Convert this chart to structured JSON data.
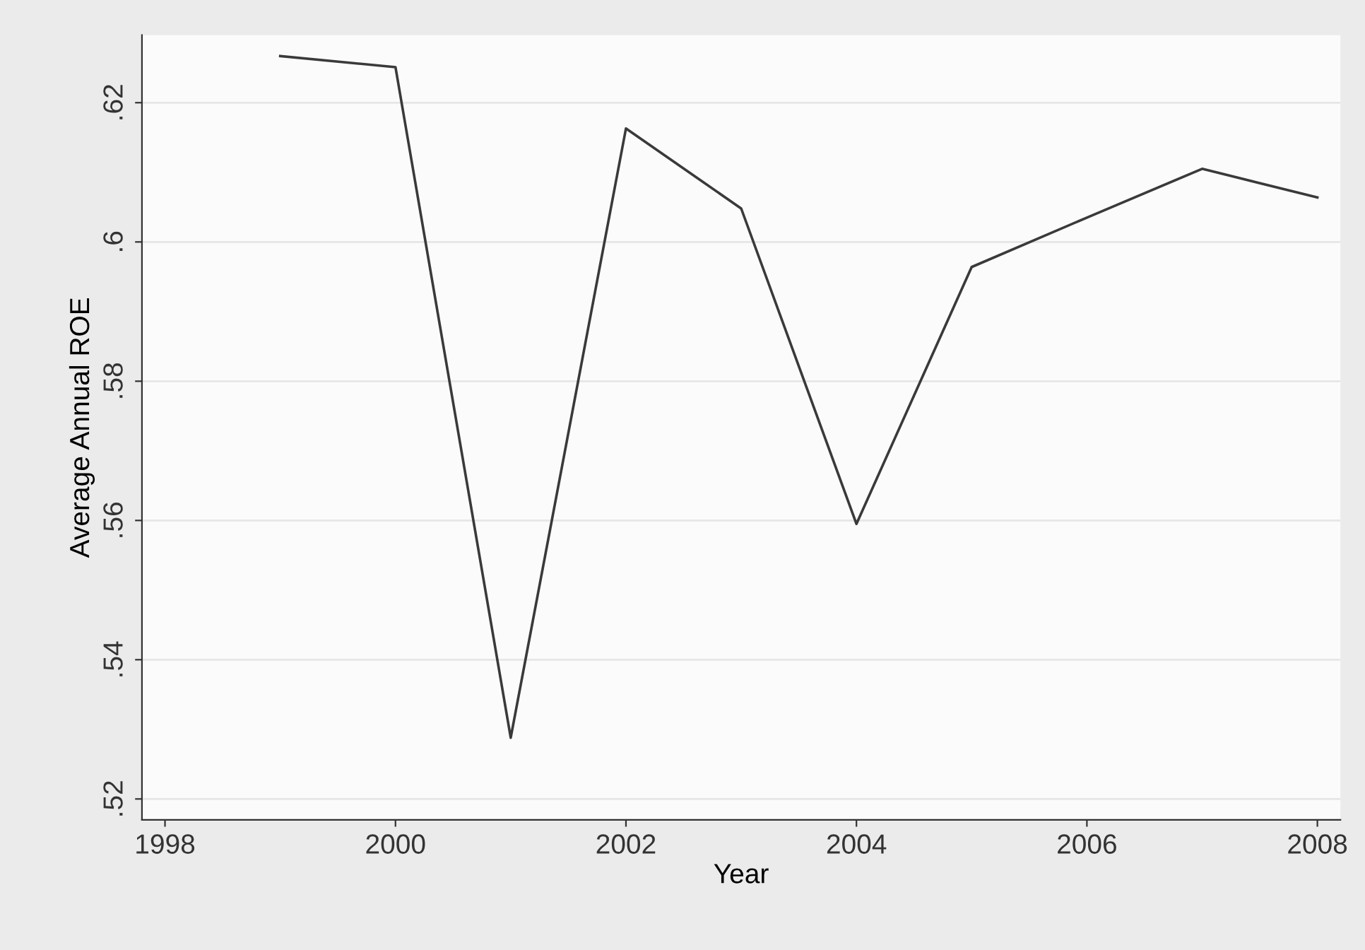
{
  "chart_data": {
    "type": "line",
    "xlabel": "Year",
    "ylabel": "Average Annual ROE",
    "x": [
      1999,
      2000,
      2001,
      2002,
      2003,
      2004,
      2005,
      2006,
      2007,
      2008
    ],
    "series": [
      {
        "color": "#3a3a3a",
        "values": [
          0.6267,
          0.6251,
          0.5288,
          0.6163,
          0.6048,
          0.5595,
          0.5964,
          0.6035,
          0.6105,
          0.6064
        ]
      }
    ],
    "xlim": [
      1997.8,
      2008.2
    ],
    "xticks": [
      1998,
      2000,
      2002,
      2004,
      2006,
      2008
    ],
    "ylim": [
      0.517,
      0.6297
    ],
    "yticks": [
      {
        "value": 0.52,
        "label": ".52"
      },
      {
        "value": 0.54,
        "label": ".54"
      },
      {
        "value": 0.56,
        "label": ".56"
      },
      {
        "value": 0.58,
        "label": ".58"
      },
      {
        "value": 0.6,
        "label": ".6"
      },
      {
        "value": 0.62,
        "label": ".62"
      }
    ],
    "grid": "y",
    "legend": false,
    "marker": "none",
    "line_style": "solid"
  }
}
